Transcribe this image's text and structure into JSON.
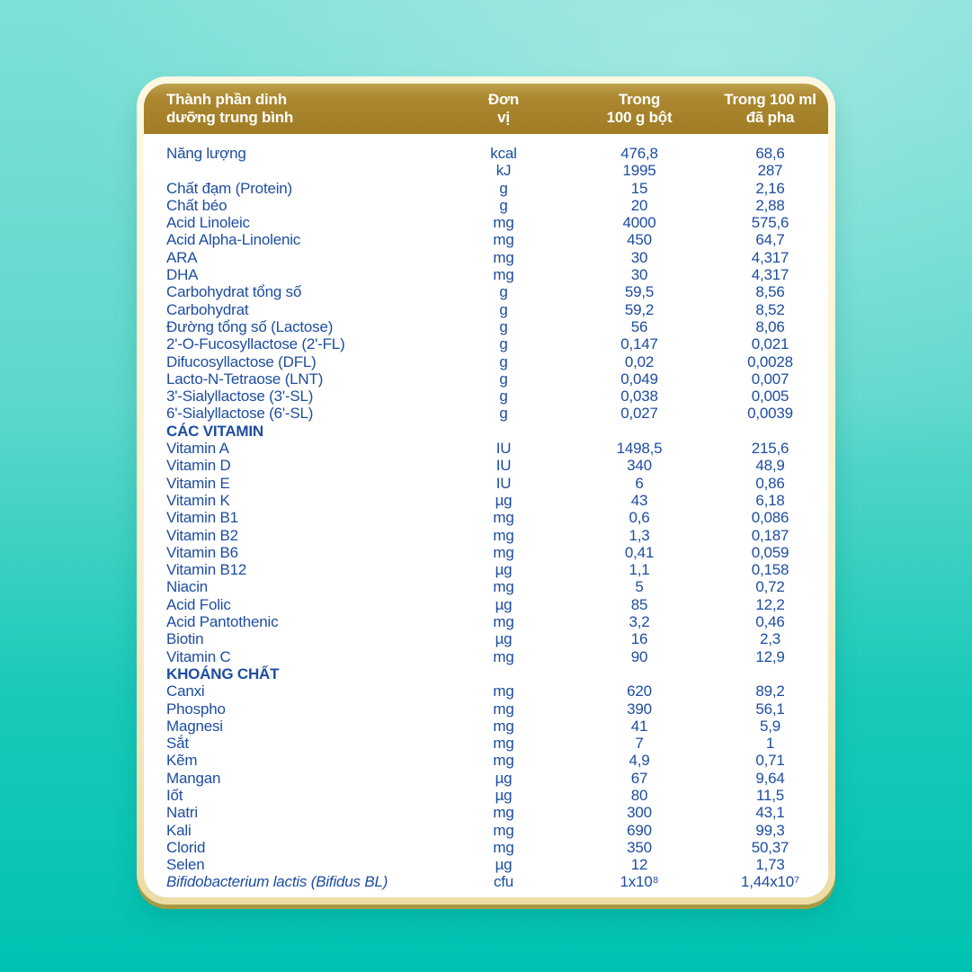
{
  "card": {
    "colors": {
      "header_gold": "#a8832b",
      "text_blue": "#1d4da1",
      "border_cream": "#f8f0cf",
      "background_top": "#7fe0d7",
      "background_bottom": "#00c2b2"
    },
    "header": {
      "ingredient": "Thành phần dinh\ndưỡng trung bình",
      "unit": "Đơn\nvị",
      "per_100g": "Trong\n100 g bột",
      "per_100ml": "Trong 100 ml\nđã pha"
    },
    "rows": [
      {
        "label": "Năng lượng",
        "unit": "kcal",
        "per_100g": "476,8",
        "per_100ml": "68,6",
        "type": "normal"
      },
      {
        "label": "",
        "unit": "kJ",
        "per_100g": "1995",
        "per_100ml": "287",
        "type": "normal"
      },
      {
        "label": "Chất đạm (Protein)",
        "unit": "g",
        "per_100g": "15",
        "per_100ml": "2,16",
        "type": "normal"
      },
      {
        "label": "Chất béo",
        "unit": "g",
        "per_100g": "20",
        "per_100ml": "2,88",
        "type": "normal"
      },
      {
        "label": "Acid Linoleic",
        "unit": "mg",
        "per_100g": "4000",
        "per_100ml": "575,6",
        "type": "normal"
      },
      {
        "label": "Acid Alpha-Linolenic",
        "unit": "mg",
        "per_100g": "450",
        "per_100ml": "64,7",
        "type": "normal"
      },
      {
        "label": "ARA",
        "unit": "mg",
        "per_100g": "30",
        "per_100ml": "4,317",
        "type": "normal"
      },
      {
        "label": "DHA",
        "unit": "mg",
        "per_100g": "30",
        "per_100ml": "4,317",
        "type": "normal"
      },
      {
        "label": "Carbohydrat tổng số",
        "unit": "g",
        "per_100g": "59,5",
        "per_100ml": "8,56",
        "type": "normal"
      },
      {
        "label": "Carbohydrat",
        "unit": "g",
        "per_100g": "59,2",
        "per_100ml": "8,52",
        "type": "normal"
      },
      {
        "label": "Đường tổng số (Lactose)",
        "unit": "g",
        "per_100g": "56",
        "per_100ml": "8,06",
        "type": "normal"
      },
      {
        "label": "2'-O-Fucosyllactose (2'-FL)",
        "unit": "g",
        "per_100g": "0,147",
        "per_100ml": "0,021",
        "type": "normal"
      },
      {
        "label": "Difucosyllactose (DFL)",
        "unit": "g",
        "per_100g": "0,02",
        "per_100ml": "0,0028",
        "type": "normal"
      },
      {
        "label": "Lacto-N-Tetraose (LNT)",
        "unit": "g",
        "per_100g": "0,049",
        "per_100ml": "0,007",
        "type": "normal"
      },
      {
        "label": "3'-Sialyllactose (3'-SL)",
        "unit": "g",
        "per_100g": "0,038",
        "per_100ml": "0,005",
        "type": "normal"
      },
      {
        "label": "6'-Sialyllactose (6'-SL)",
        "unit": "g",
        "per_100g": "0,027",
        "per_100ml": "0,0039",
        "type": "normal"
      },
      {
        "label": "CÁC VITAMIN",
        "unit": "",
        "per_100g": "",
        "per_100ml": "",
        "type": "section"
      },
      {
        "label": "Vitamin A",
        "unit": "IU",
        "per_100g": "1498,5",
        "per_100ml": "215,6",
        "type": "normal"
      },
      {
        "label": "Vitamin D",
        "unit": "IU",
        "per_100g": "340",
        "per_100ml": "48,9",
        "type": "normal"
      },
      {
        "label": "Vitamin E",
        "unit": "IU",
        "per_100g": "6",
        "per_100ml": "0,86",
        "type": "normal"
      },
      {
        "label": "Vitamin K",
        "unit": "µg",
        "per_100g": "43",
        "per_100ml": "6,18",
        "type": "normal"
      },
      {
        "label": "Vitamin B1",
        "unit": "mg",
        "per_100g": "0,6",
        "per_100ml": "0,086",
        "type": "normal"
      },
      {
        "label": "Vitamin B2",
        "unit": "mg",
        "per_100g": "1,3",
        "per_100ml": "0,187",
        "type": "normal"
      },
      {
        "label": "Vitamin B6",
        "unit": "mg",
        "per_100g": "0,41",
        "per_100ml": "0,059",
        "type": "normal"
      },
      {
        "label": "Vitamin B12",
        "unit": "µg",
        "per_100g": "1,1",
        "per_100ml": "0,158",
        "type": "normal"
      },
      {
        "label": "Niacin",
        "unit": "mg",
        "per_100g": "5",
        "per_100ml": "0,72",
        "type": "normal"
      },
      {
        "label": "Acid Folic",
        "unit": "µg",
        "per_100g": "85",
        "per_100ml": "12,2",
        "type": "normal"
      },
      {
        "label": "Acid Pantothenic",
        "unit": "mg",
        "per_100g": "3,2",
        "per_100ml": "0,46",
        "type": "normal"
      },
      {
        "label": "Biotin",
        "unit": "µg",
        "per_100g": "16",
        "per_100ml": "2,3",
        "type": "normal"
      },
      {
        "label": "Vitamin C",
        "unit": "mg",
        "per_100g": "90",
        "per_100ml": "12,9",
        "type": "normal"
      },
      {
        "label": "KHOÁNG CHẤT",
        "unit": "",
        "per_100g": "",
        "per_100ml": "",
        "type": "section"
      },
      {
        "label": "Canxi",
        "unit": "mg",
        "per_100g": "620",
        "per_100ml": "89,2",
        "type": "normal"
      },
      {
        "label": "Phospho",
        "unit": "mg",
        "per_100g": "390",
        "per_100ml": "56,1",
        "type": "normal"
      },
      {
        "label": "Magnesi",
        "unit": "mg",
        "per_100g": "41",
        "per_100ml": "5,9",
        "type": "normal"
      },
      {
        "label": "Sắt",
        "unit": "mg",
        "per_100g": "7",
        "per_100ml": "1",
        "type": "normal"
      },
      {
        "label": "Kẽm",
        "unit": "mg",
        "per_100g": "4,9",
        "per_100ml": "0,71",
        "type": "normal"
      },
      {
        "label": "Mangan",
        "unit": "µg",
        "per_100g": "67",
        "per_100ml": "9,64",
        "type": "normal"
      },
      {
        "label": "Iốt",
        "unit": "µg",
        "per_100g": "80",
        "per_100ml": "11,5",
        "type": "normal"
      },
      {
        "label": "Natri",
        "unit": "mg",
        "per_100g": "300",
        "per_100ml": "43,1",
        "type": "normal"
      },
      {
        "label": "Kali",
        "unit": "mg",
        "per_100g": "690",
        "per_100ml": "99,3",
        "type": "normal"
      },
      {
        "label": "Clorid",
        "unit": "mg",
        "per_100g": "350",
        "per_100ml": "50,37",
        "type": "normal"
      },
      {
        "label": "Selen",
        "unit": "µg",
        "per_100g": "12",
        "per_100ml": "1,73",
        "type": "normal"
      },
      {
        "label": "Bifidobacterium lactis (Bifidus BL)",
        "unit": "cfu",
        "per_100g": "1x10⁸",
        "per_100ml": "1,44x10⁷",
        "type": "italic"
      }
    ]
  }
}
